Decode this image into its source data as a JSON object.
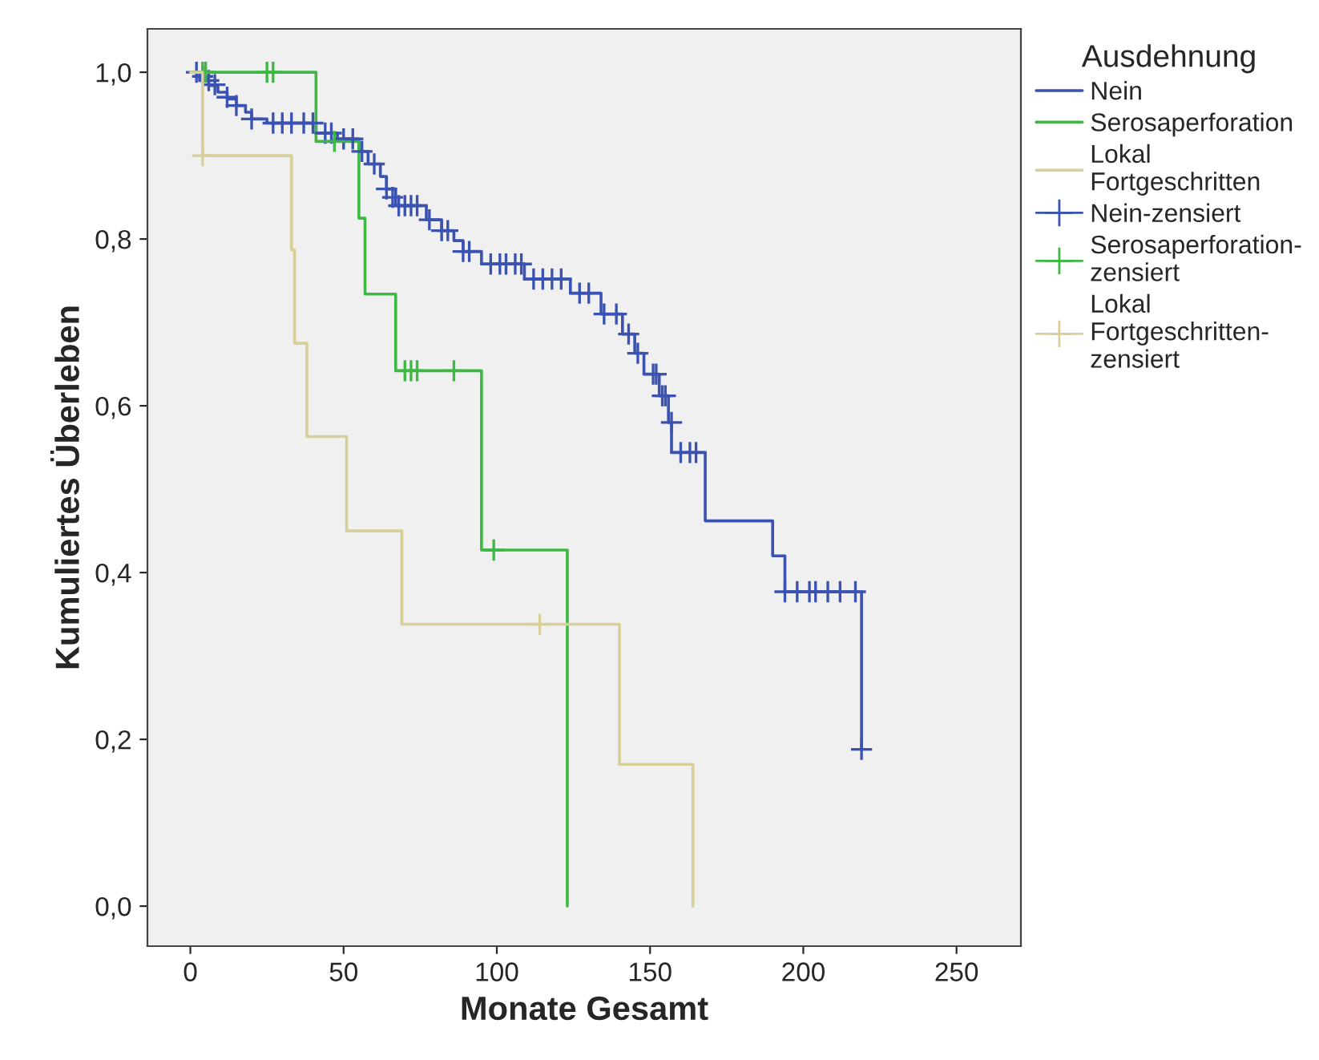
{
  "chart_data": {
    "type": "step",
    "xlabel": "Monate Gesamt",
    "ylabel": "Kumuliertes Überleben",
    "legend_title": "Ausdehnung",
    "legend": "right",
    "grid": false,
    "xlim": [
      -14,
      271
    ],
    "ylim": [
      -0.048,
      1.052
    ],
    "xticks": [
      0,
      50,
      100,
      150,
      200,
      250
    ],
    "yticks": [
      {
        "value": 0.0,
        "label": "0,0"
      },
      {
        "value": 0.2,
        "label": "0,2"
      },
      {
        "value": 0.4,
        "label": "0,4"
      },
      {
        "value": 0.6,
        "label": "0,6"
      },
      {
        "value": 0.8,
        "label": "0,8"
      },
      {
        "value": 1.0,
        "label": "1,0"
      }
    ],
    "series": [
      {
        "name": "Nein",
        "color": "#3a52b0",
        "x": [
          0,
          3,
          6,
          9,
          12,
          15,
          18,
          20,
          25,
          41,
          48,
          55,
          58,
          62,
          64,
          67,
          77,
          82,
          86,
          89,
          95,
          109,
          124,
          134,
          141,
          145,
          148,
          153,
          156,
          157,
          168,
          190,
          194,
          219
        ],
        "values": [
          1.0,
          0.992,
          0.984,
          0.976,
          0.968,
          0.96,
          0.952,
          0.944,
          0.939,
          0.927,
          0.92,
          0.905,
          0.89,
          0.875,
          0.86,
          0.84,
          0.823,
          0.81,
          0.798,
          0.785,
          0.77,
          0.752,
          0.735,
          0.71,
          0.686,
          0.663,
          0.638,
          0.612,
          0.58,
          0.544,
          0.462,
          0.42,
          0.377,
          0.188
        ]
      },
      {
        "name": "Serosaperforation",
        "color": "#3cb843",
        "x": [
          0,
          41,
          55,
          57,
          67,
          95,
          123
        ],
        "values": [
          1.0,
          0.917,
          0.825,
          0.734,
          0.642,
          0.427,
          0.0
        ]
      },
      {
        "name": "Lokal Fortgeschritten",
        "color": "#d6cf98",
        "x": [
          0,
          4,
          33,
          34,
          38,
          51,
          69,
          140,
          164
        ],
        "values": [
          1.0,
          0.9,
          0.787,
          0.675,
          0.563,
          0.45,
          0.338,
          0.17,
          0.0
        ]
      },
      {
        "name": "Nein-zensiert",
        "type": "scatter",
        "marker": "cross",
        "color": "#3a52b0",
        "x": [
          2,
          4,
          6,
          8,
          12,
          15,
          20,
          27,
          30,
          33,
          37,
          40,
          44,
          46,
          50,
          53,
          56,
          60,
          64,
          66,
          68,
          70,
          72,
          74,
          78,
          82,
          84,
          89,
          91,
          98,
          101,
          103,
          106,
          108,
          112,
          115,
          118,
          121,
          127,
          130,
          135,
          139,
          143,
          146,
          151,
          152,
          154,
          155,
          157,
          160,
          163,
          165,
          194,
          198,
          202,
          204,
          208,
          212,
          217,
          219
        ],
        "values": [
          1.0,
          0.995,
          0.99,
          0.985,
          0.97,
          0.96,
          0.944,
          0.939,
          0.939,
          0.939,
          0.939,
          0.939,
          0.927,
          0.927,
          0.92,
          0.92,
          0.905,
          0.89,
          0.86,
          0.85,
          0.84,
          0.84,
          0.84,
          0.84,
          0.823,
          0.81,
          0.81,
          0.785,
          0.785,
          0.77,
          0.77,
          0.77,
          0.77,
          0.77,
          0.752,
          0.752,
          0.752,
          0.752,
          0.735,
          0.735,
          0.71,
          0.71,
          0.686,
          0.663,
          0.638,
          0.638,
          0.612,
          0.612,
          0.58,
          0.544,
          0.544,
          0.544,
          0.377,
          0.377,
          0.377,
          0.377,
          0.377,
          0.377,
          0.377,
          0.188
        ]
      },
      {
        "name": "Serosaperforation-zensiert",
        "type": "scatter",
        "marker": "cross",
        "color": "#3cb843",
        "x": [
          4,
          5,
          25,
          27,
          47,
          70,
          72,
          74,
          86,
          99
        ],
        "values": [
          1.0,
          1.0,
          1.0,
          1.0,
          0.917,
          0.642,
          0.642,
          0.642,
          0.642,
          0.427
        ]
      },
      {
        "name": "Lokal Fortgeschritten-zensiert",
        "type": "scatter",
        "marker": "cross",
        "color": "#d6cf98",
        "x": [
          4,
          114
        ],
        "values": [
          0.9,
          0.338
        ]
      }
    ]
  }
}
